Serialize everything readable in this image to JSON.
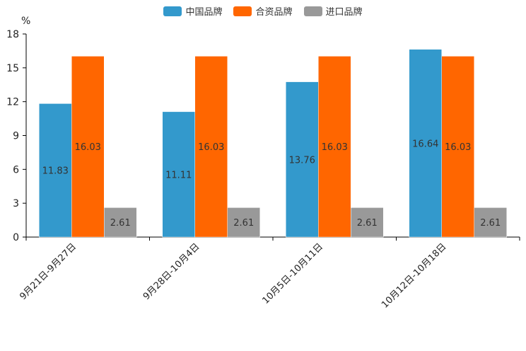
{
  "chart_data": {
    "type": "bar",
    "title": "",
    "ylabel": "%",
    "xlabel": "",
    "ylim": [
      0,
      18
    ],
    "yticks": [
      0,
      3,
      6,
      9,
      12,
      15,
      18
    ],
    "categories": [
      "9月21日-9月27日",
      "9月28日-10月4日",
      "10月5日-10月11日",
      "10月12日-10月18日"
    ],
    "series": [
      {
        "name": "中国品牌",
        "color": "#3399CC",
        "values": [
          11.83,
          11.11,
          13.76,
          16.64
        ],
        "labels": [
          "11.83",
          "11.11",
          "13.76",
          "16.64"
        ]
      },
      {
        "name": "合资品牌",
        "color": "#FF6600",
        "values": [
          16.03,
          16.03,
          16.03,
          16.03
        ],
        "labels": [
          "16.03",
          "16.03",
          "16.03",
          "16.03"
        ]
      },
      {
        "name": "进口品牌",
        "color": "#999999",
        "values": [
          2.61,
          2.61,
          2.61,
          2.61
        ],
        "labels": [
          "2.61",
          "2.61",
          "2.61",
          "2.61"
        ]
      }
    ],
    "legend_position": "top-center",
    "grid": false
  }
}
